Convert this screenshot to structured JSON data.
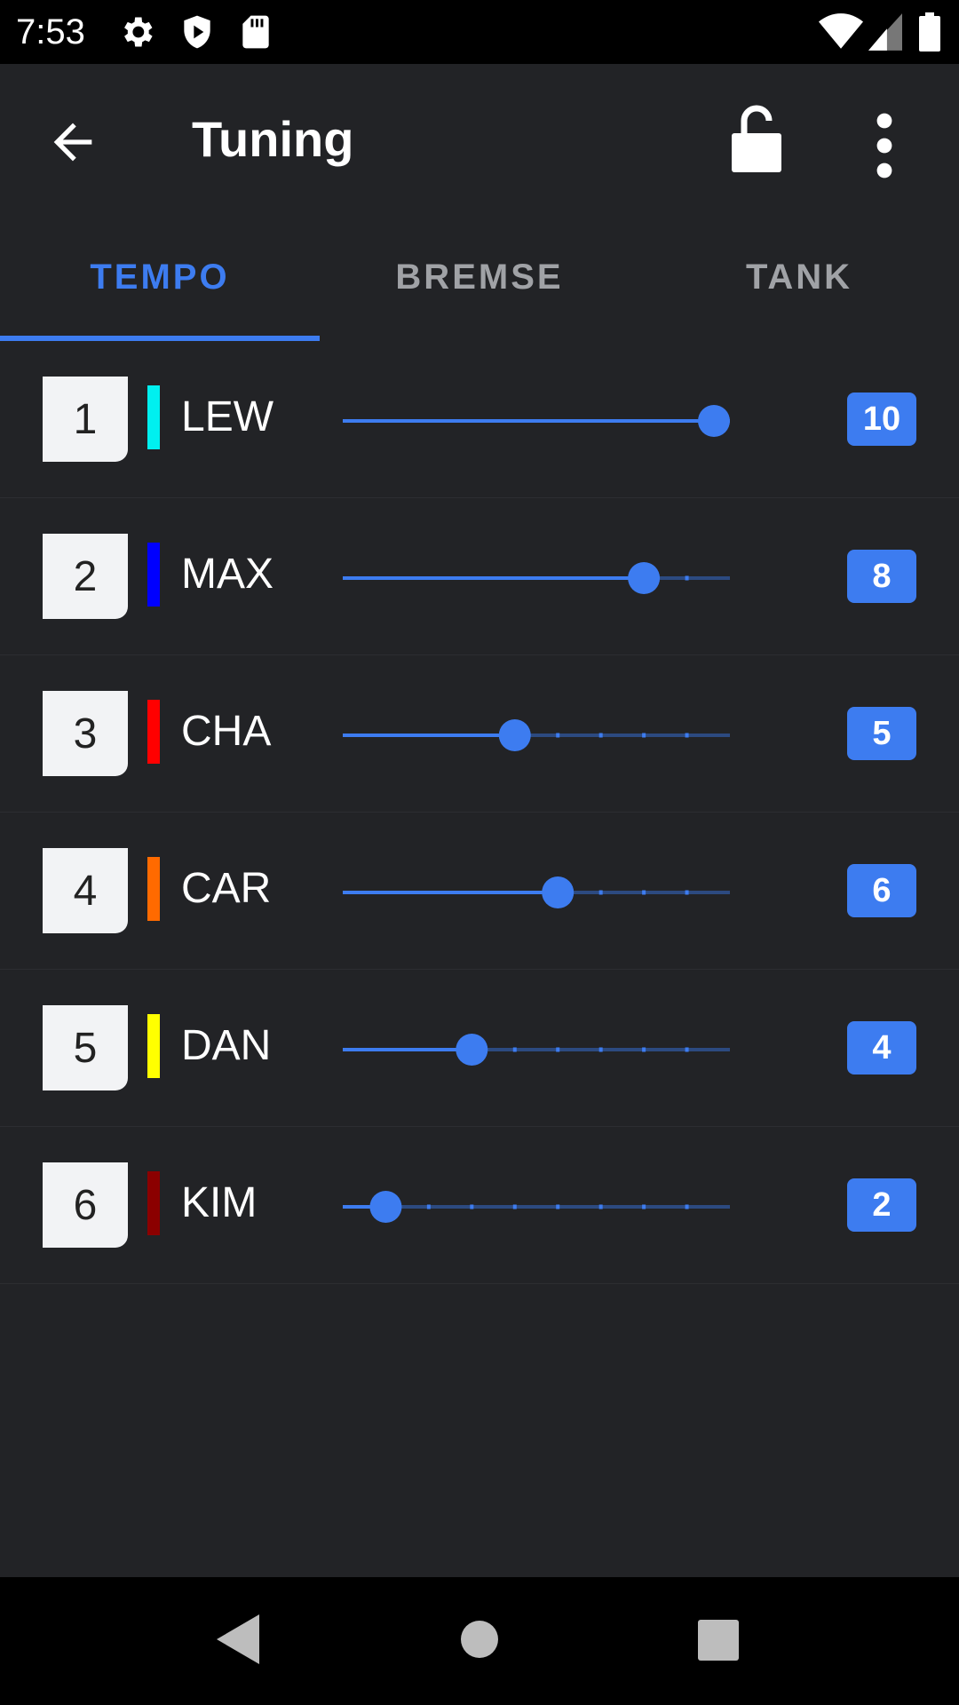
{
  "status_bar": {
    "time": "7:53",
    "icons": [
      "settings-icon",
      "play-protect-icon",
      "sd-card-icon",
      "wifi-icon",
      "signal-icon",
      "battery-icon"
    ]
  },
  "app_bar": {
    "title": "Tuning",
    "back_icon": "arrow-left-icon",
    "lock_icon": "lock-open-icon",
    "more_icon": "more-vert-icon"
  },
  "tabs": [
    {
      "label": "TEMPO",
      "active": true
    },
    {
      "label": "BREMSE",
      "active": false
    },
    {
      "label": "TANK",
      "active": false
    }
  ],
  "slider_range": {
    "min": 1,
    "max": 10
  },
  "drivers": [
    {
      "position": "1",
      "name": "LEW",
      "color": "#00f0f0",
      "value": 10
    },
    {
      "position": "2",
      "name": "MAX",
      "color": "#0000ff",
      "value": 8
    },
    {
      "position": "3",
      "name": "CHA",
      "color": "#ff0000",
      "value": 5
    },
    {
      "position": "4",
      "name": "CAR",
      "color": "#ff6a00",
      "value": 6
    },
    {
      "position": "5",
      "name": "DAN",
      "color": "#ffff00",
      "value": 4
    },
    {
      "position": "6",
      "name": "KIM",
      "color": "#8b0000",
      "value": 2
    }
  ],
  "colors": {
    "accent": "#3d7cf0",
    "background": "#222326",
    "inactive_tab": "#a0a2a6"
  },
  "nav_bar": {
    "icons": [
      "back-triangle-icon",
      "home-circle-icon",
      "recents-square-icon"
    ]
  }
}
